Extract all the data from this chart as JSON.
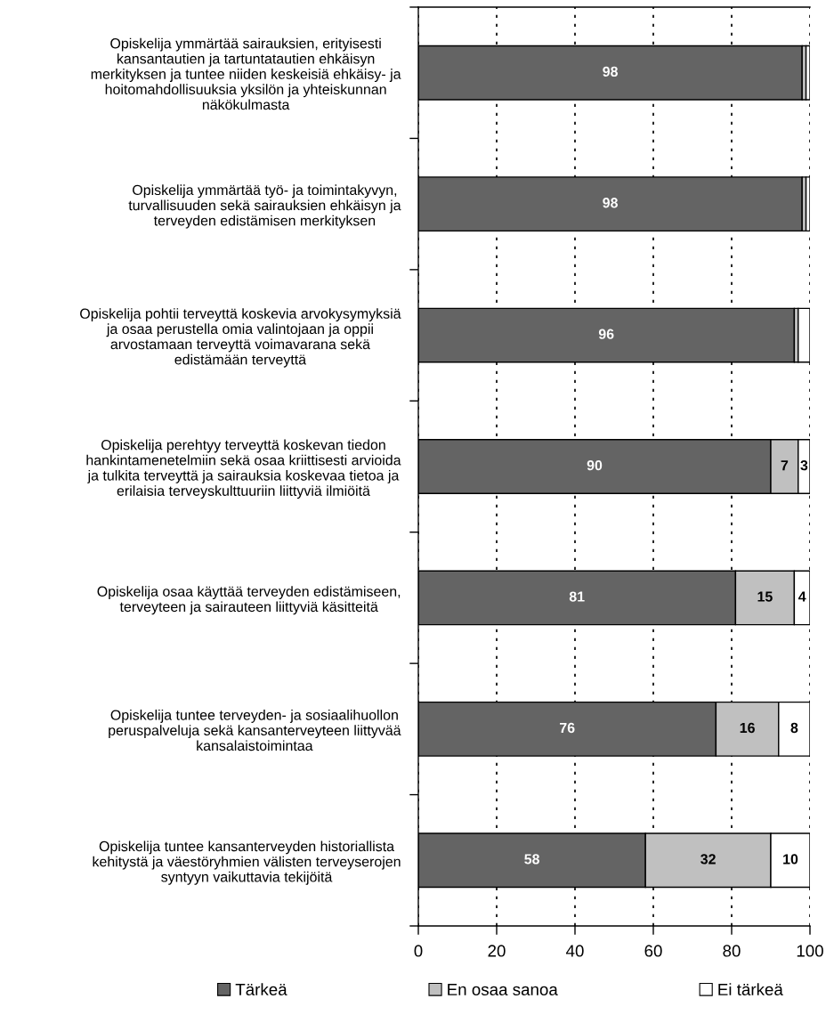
{
  "chart_data": {
    "type": "bar",
    "orientation": "horizontal",
    "stacked": true,
    "categories": [
      "Opiskelija ymmärtää sairauksien, erityisesti\nkansantautien ja tartuntatautien ehkäisyn\nmerkityksen ja tuntee niiden keskeisiä ehkäisy- ja\nhoitomahdollisuuksia yksilön ja yhteiskunnan\nnäkökulmasta",
      "Opiskelija ymmärtää työ- ja toimintakyvyn,\nturvallisuuden sekä sairauksien ehkäisyn ja\nterveyden edistämisen merkityksen",
      "Opiskelija pohtii terveyttä koskevia arvokysymyksiä\nja osaa perustella omia valintojaan ja oppii\narvostamaan terveyttä voimavarana sekä\nedistämään terveyttä",
      "Opiskelija perehtyy terveyttä koskevan tiedon\nhankintamenetelmiin sekä osaa kriittisesti arvioida\nja tulkita terveyttä ja sairauksia koskevaa tietoa ja\nerilaisia terveyskulttuuriin liittyviä ilmiöitä",
      "Opiskelija osaa käyttää terveyden edistämiseen,\nterveyteen ja sairauteen liittyviä käsitteitä",
      "Opiskelija tuntee terveyden- ja sosiaalihuollon\nperuspalveluja sekä kansanterveyteen liittyvää\nkansalaistoimintaa",
      "Opiskelija tuntee kansanterveyden historiallista\nkehitystä ja väestöryhmien välisten terveyserojen\nsyntyyn vaikuttavia tekijöitä"
    ],
    "series": [
      {
        "name": "Tärkeä",
        "color": "#646464",
        "values": [
          98,
          98,
          96,
          90,
          81,
          76,
          58
        ],
        "value_labels": [
          "98",
          "98",
          "96",
          "90",
          "81",
          "76",
          "58"
        ]
      },
      {
        "name": "En osaa sanoa",
        "color": "#c0c0c0",
        "values": [
          1,
          1,
          1,
          7,
          15,
          16,
          32
        ],
        "value_labels": [
          null,
          null,
          null,
          "7",
          "15",
          "16",
          "32"
        ]
      },
      {
        "name": "Ei tärkeä",
        "color": "#ffffff",
        "values": [
          1,
          1,
          3,
          3,
          4,
          8,
          10
        ],
        "value_labels": [
          null,
          null,
          null,
          "3",
          "4",
          "8",
          "10"
        ]
      }
    ],
    "xlim": [
      0,
      100
    ],
    "xticks": [
      0,
      20,
      40,
      60,
      80,
      100
    ],
    "grid": "x",
    "legend": "bottom"
  }
}
